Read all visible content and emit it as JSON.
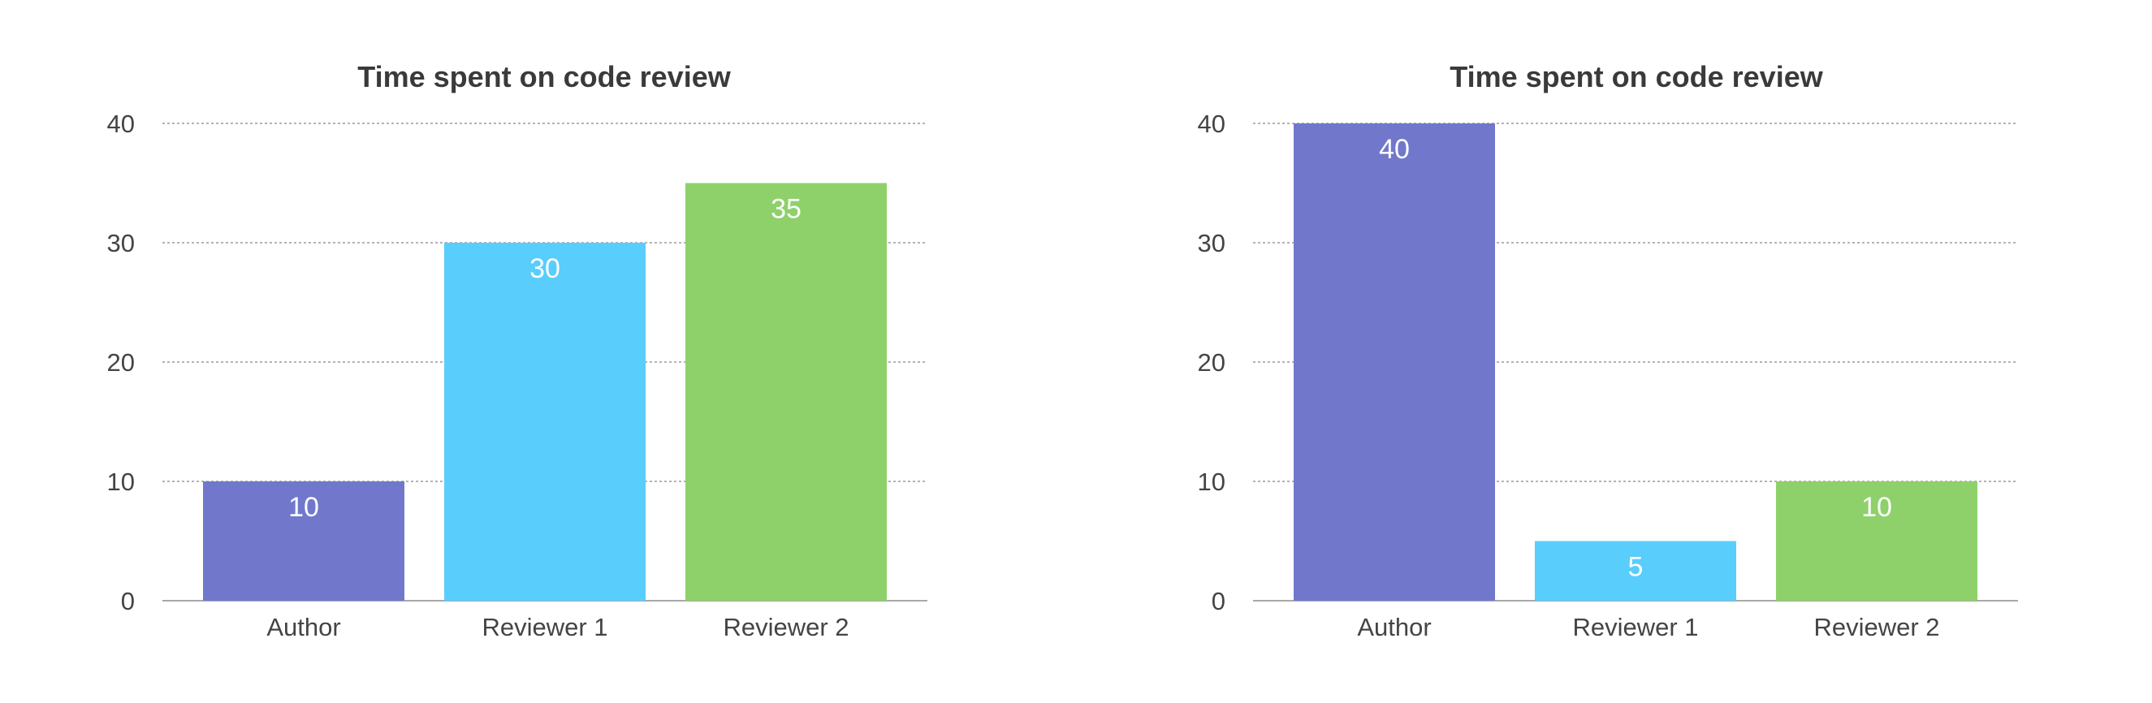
{
  "chart_data": [
    {
      "type": "bar",
      "title": "Time spent on code review",
      "xlabel": "",
      "ylabel": "",
      "categories": [
        "Author",
        "Reviewer 1",
        "Reviewer 2"
      ],
      "values": [
        10,
        30,
        35
      ],
      "ylim": [
        0,
        40
      ],
      "yticks": [
        0,
        10,
        20,
        30,
        40
      ],
      "colors": [
        "#7178cc",
        "#59cdfc",
        "#8ed16a"
      ],
      "data_labels": [
        "10",
        "30",
        "35"
      ],
      "grid": true,
      "legend": "none"
    },
    {
      "type": "bar",
      "title": "Time spent on code review",
      "xlabel": "",
      "ylabel": "",
      "categories": [
        "Author",
        "Reviewer 1",
        "Reviewer 2"
      ],
      "values": [
        40,
        5,
        10
      ],
      "ylim": [
        0,
        40
      ],
      "yticks": [
        0,
        10,
        20,
        30,
        40
      ],
      "colors": [
        "#7178cc",
        "#59cdfc",
        "#8ed16a"
      ],
      "data_labels": [
        "40",
        "5",
        "10"
      ],
      "grid": true,
      "legend": "none"
    }
  ]
}
